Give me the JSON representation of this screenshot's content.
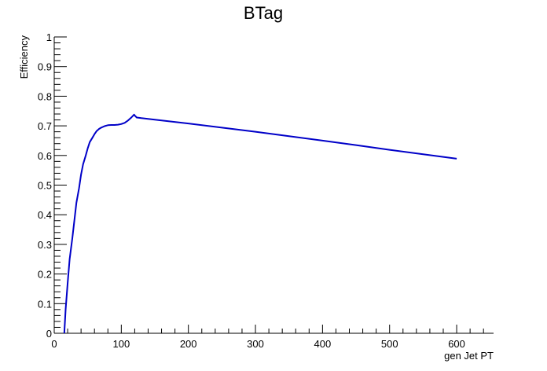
{
  "chart_data": {
    "type": "line",
    "title": "BTag",
    "xlabel": "gen Jet PT",
    "ylabel": "Efficiency",
    "xlim": [
      0,
      655
    ],
    "ylim": [
      0,
      1
    ],
    "x_ticks": [
      0,
      100,
      200,
      300,
      400,
      500,
      600
    ],
    "y_ticks": [
      0,
      0.1,
      0.2,
      0.3,
      0.4,
      0.5,
      0.6,
      0.7,
      0.8,
      0.9,
      1
    ],
    "y_tick_labels": [
      "0",
      "0.1",
      "0.2",
      "0.3",
      "0.4",
      "0.5",
      "0.6",
      "0.7",
      "0.8",
      "0.9",
      "1"
    ],
    "grid": false,
    "legend": "none",
    "line_color": "#0000c8",
    "series": [
      {
        "x": [
          15,
          17,
          20,
          23,
          27,
          30,
          33,
          37,
          40,
          43,
          47,
          50,
          53,
          57,
          60,
          63,
          67,
          70,
          75,
          80,
          85,
          90,
          95,
          100,
          105,
          110,
          115,
          119,
          120,
          123,
          130,
          150,
          200,
          250,
          300,
          350,
          400,
          450,
          500,
          550,
          600
        ],
        "y": [
          0.0,
          0.08,
          0.17,
          0.25,
          0.32,
          0.38,
          0.44,
          0.49,
          0.535,
          0.57,
          0.6,
          0.625,
          0.645,
          0.66,
          0.672,
          0.682,
          0.69,
          0.694,
          0.699,
          0.702,
          0.703,
          0.703,
          0.704,
          0.706,
          0.71,
          0.718,
          0.728,
          0.738,
          0.735,
          0.728,
          0.726,
          0.721,
          0.708,
          0.694,
          0.68,
          0.665,
          0.65,
          0.635,
          0.619,
          0.604,
          0.589
        ]
      }
    ]
  }
}
